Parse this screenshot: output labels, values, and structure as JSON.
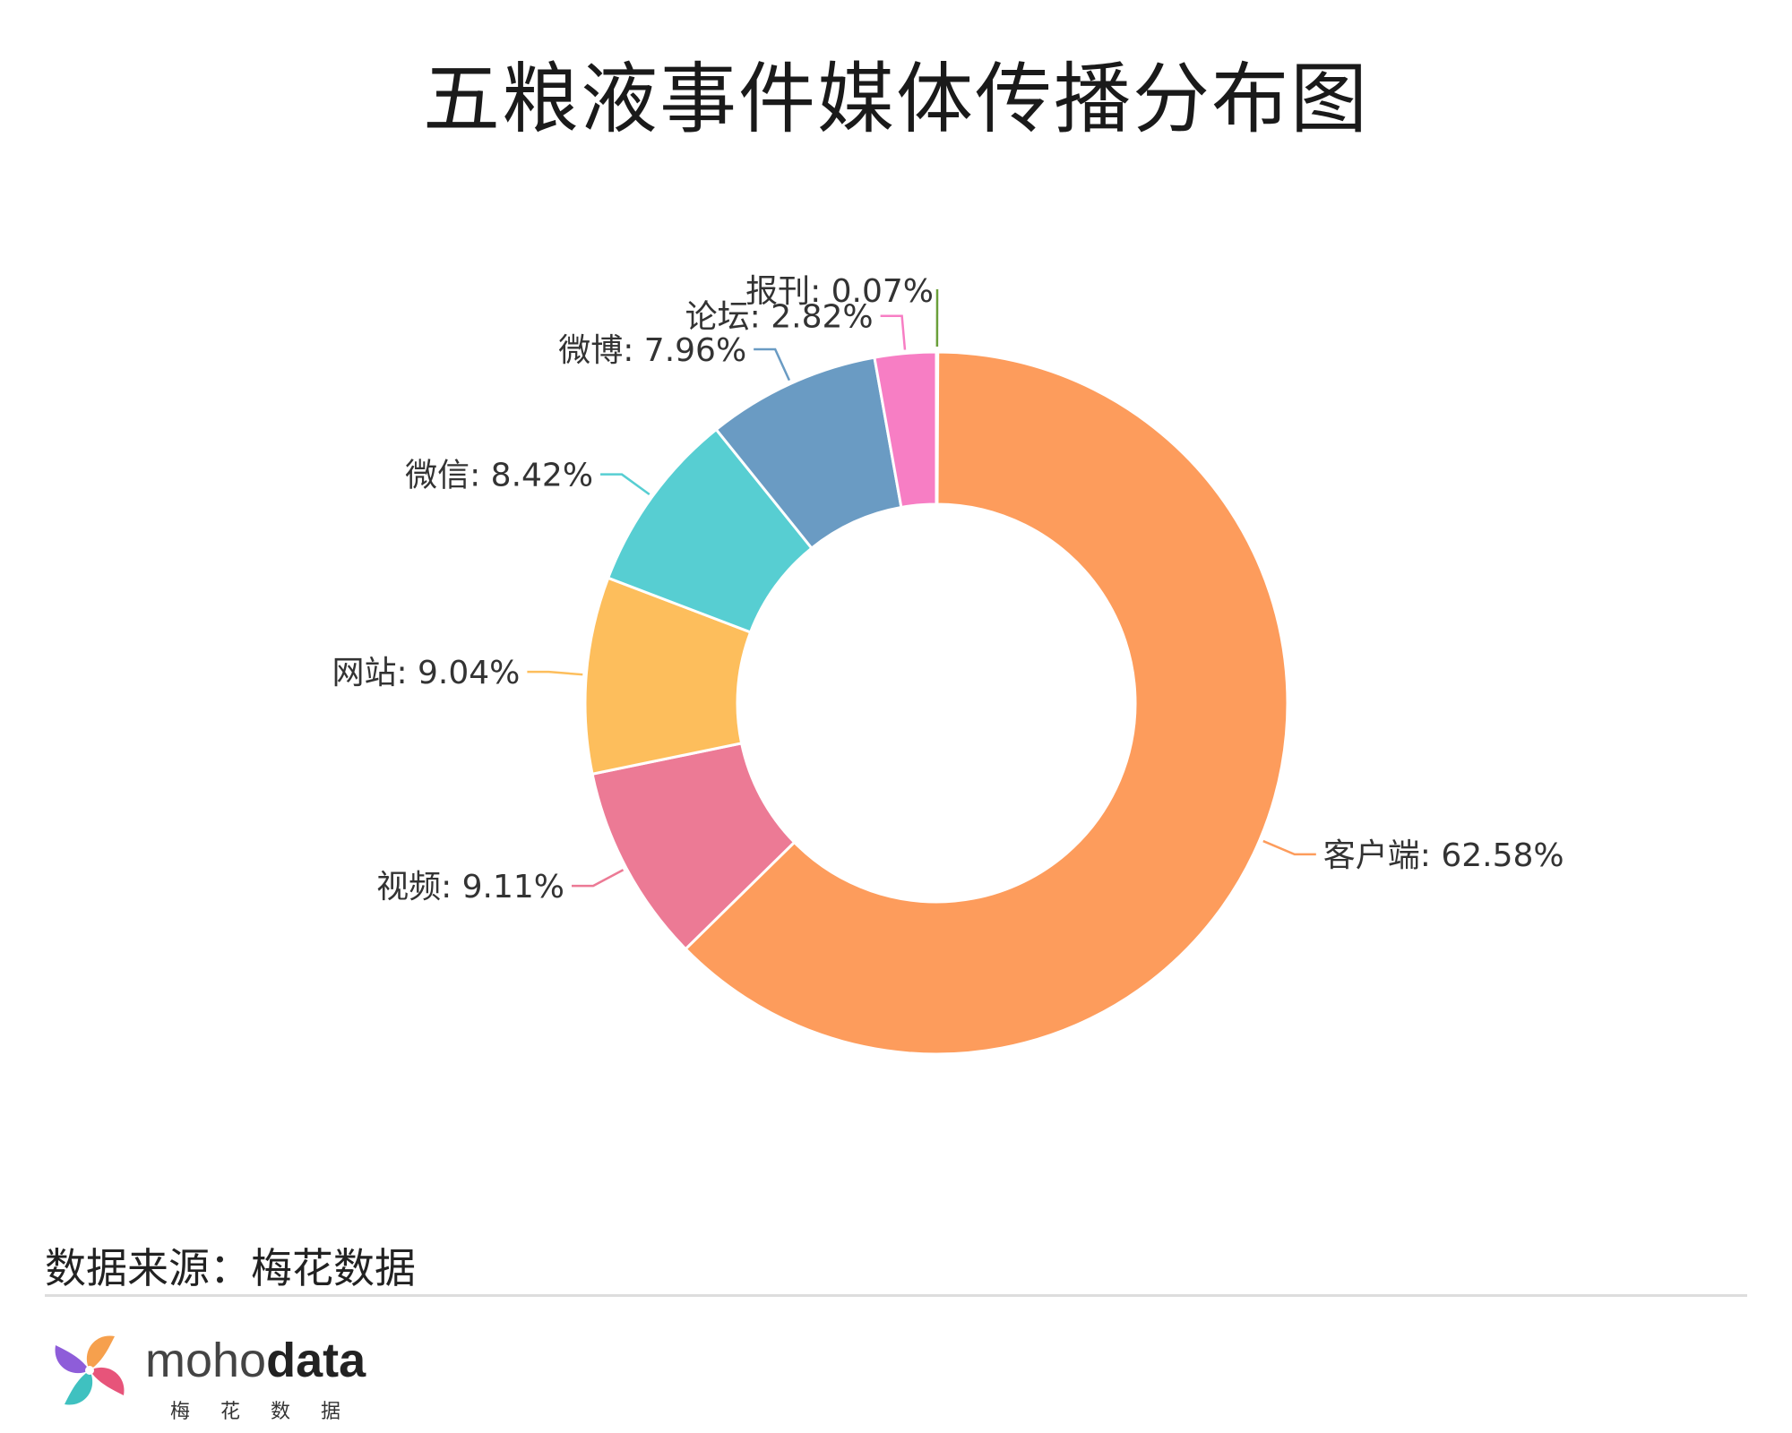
{
  "title": "五粮液事件媒体传播分布图",
  "source_text": "数据来源：梅花数据",
  "brand": {
    "word_light": "moho",
    "word_bold": "data",
    "subtitle": "梅花数据",
    "colors": [
      "#f6a04d",
      "#e7547a",
      "#3fc1c0",
      "#8e5dd9"
    ]
  },
  "chart_data": {
    "type": "pie",
    "variant": "donut",
    "title": "五粮液事件媒体传播分布图",
    "label_format": "{name}: {value}%",
    "slices": [
      {
        "name": "报刊",
        "value": 0.07,
        "color": "#6a9f3a"
      },
      {
        "name": "客户端",
        "value": 62.58,
        "color": "#fd9c5c"
      },
      {
        "name": "视频",
        "value": 9.11,
        "color": "#ec7a95"
      },
      {
        "name": "网站",
        "value": 9.04,
        "color": "#fdbe5c"
      },
      {
        "name": "微信",
        "value": 8.42,
        "color": "#57ced2"
      },
      {
        "name": "微博",
        "value": 7.96,
        "color": "#6a9bc3"
      },
      {
        "name": "论坛",
        "value": 2.82,
        "color": "#f77ec4"
      }
    ]
  }
}
